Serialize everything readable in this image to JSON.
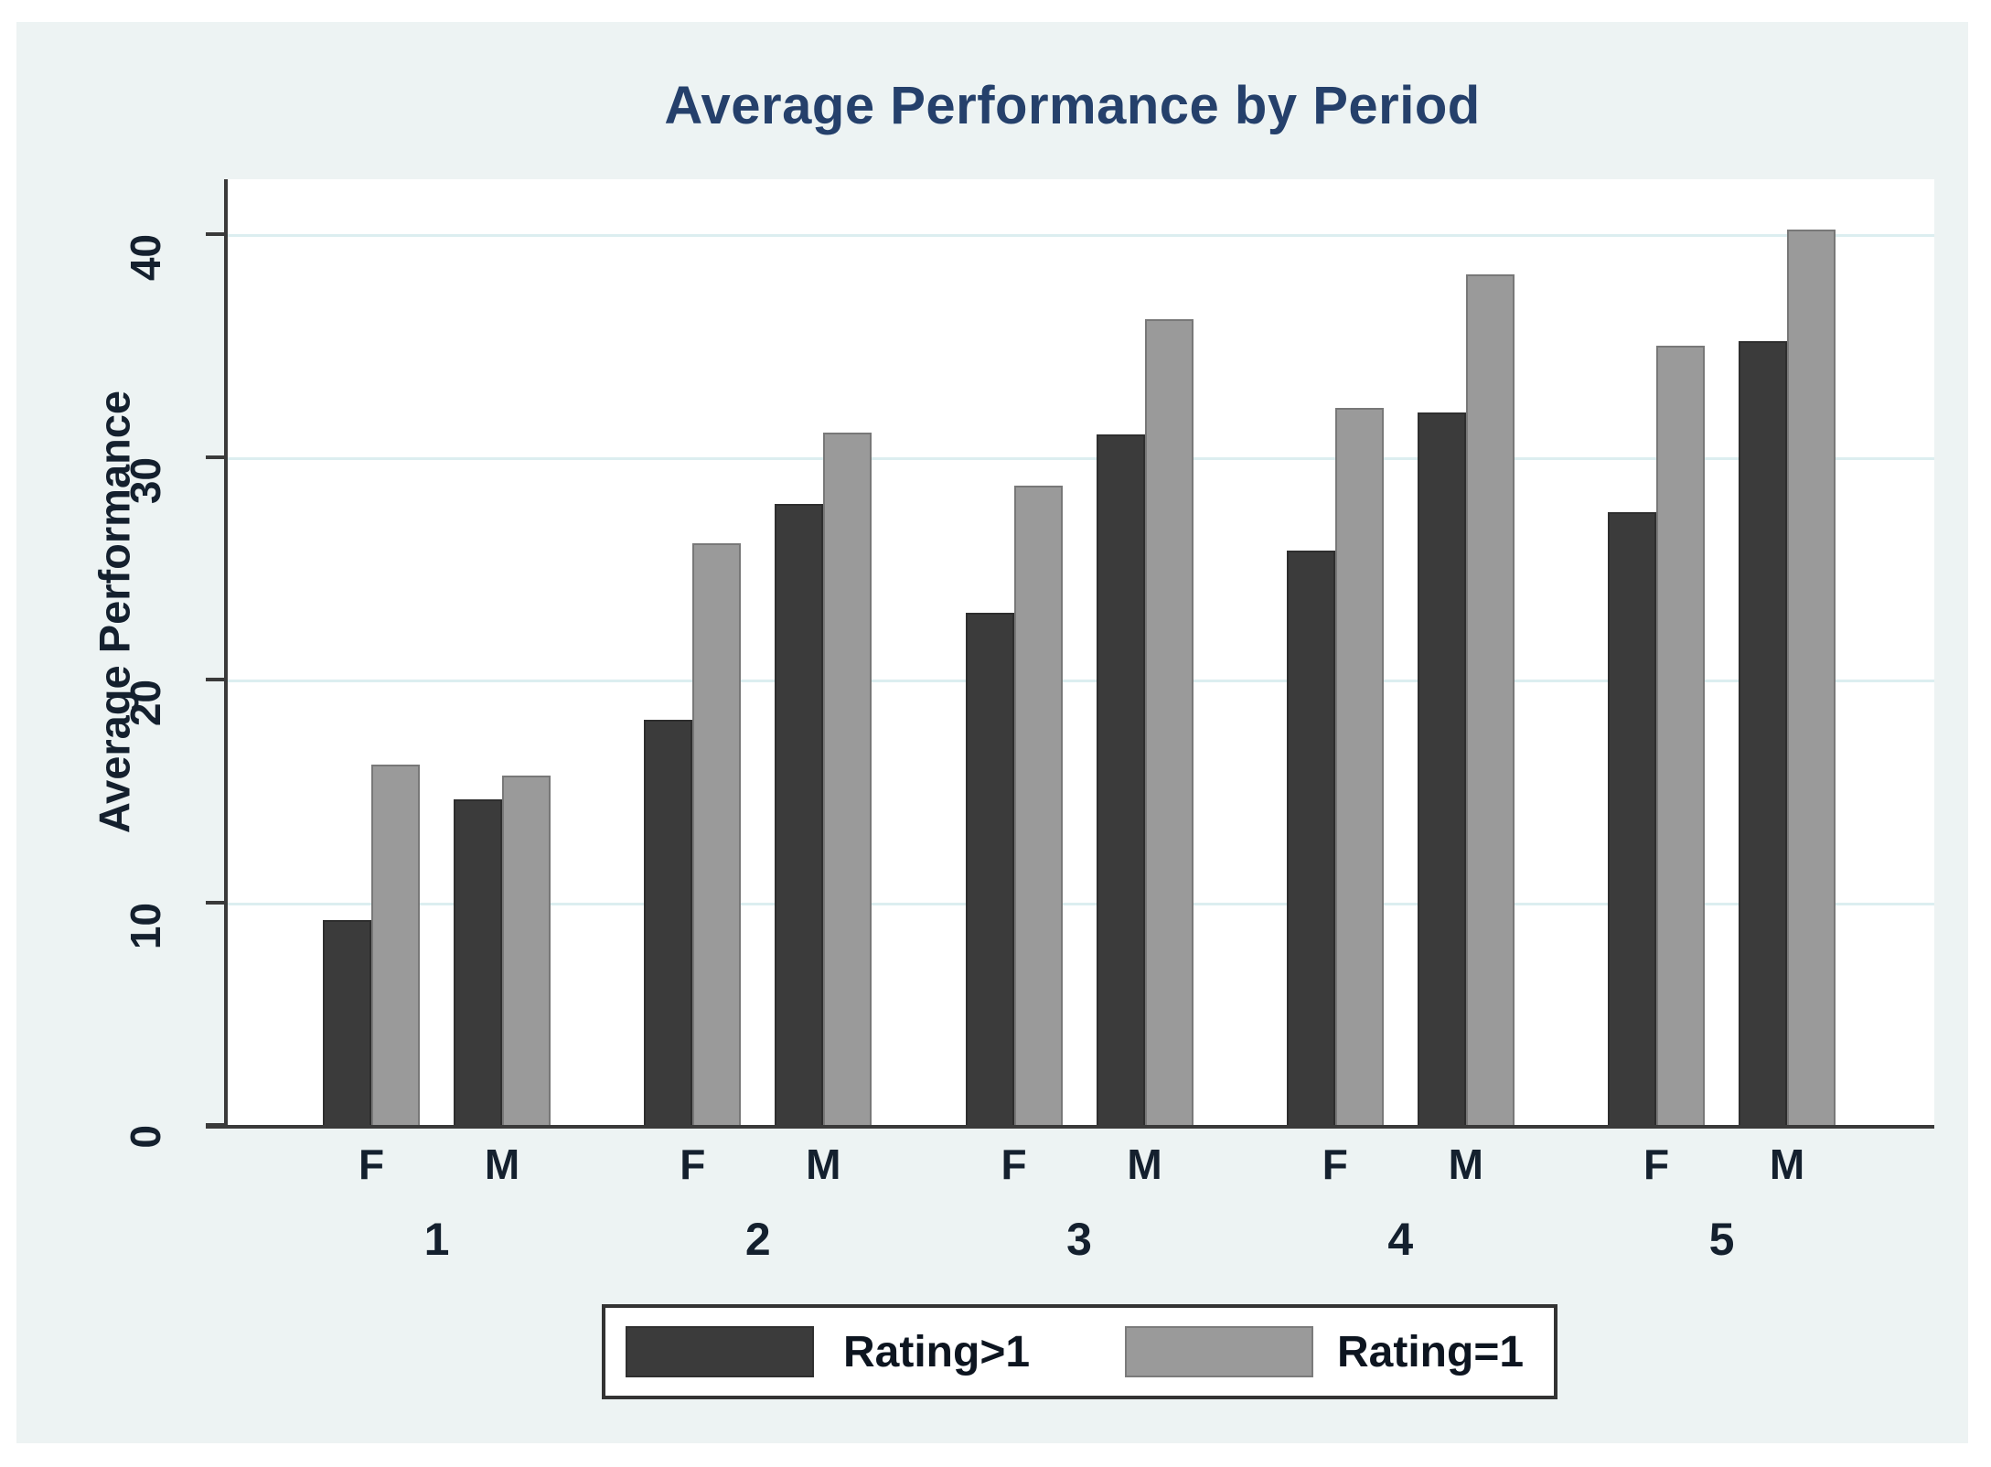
{
  "chart_data": {
    "type": "bar",
    "title": "Average Performance by Period",
    "xlabel": "",
    "ylabel": "Average Performance",
    "ylim": [
      0,
      42
    ],
    "yticks": [
      0,
      10,
      20,
      30,
      40
    ],
    "grid": true,
    "legend_position": "bottom",
    "groups": [
      "1",
      "2",
      "3",
      "4",
      "5"
    ],
    "subgroups": [
      "F",
      "M"
    ],
    "series": [
      {
        "name": "Rating>1",
        "color": "#3b3b3b",
        "values": {
          "F": [
            9.2,
            18.2,
            23.0,
            25.8,
            27.5
          ],
          "M": [
            14.6,
            27.9,
            31.0,
            32.0,
            35.2
          ]
        }
      },
      {
        "name": "Rating=1",
        "color": "#9a9a9a",
        "values": {
          "F": [
            16.2,
            26.1,
            28.7,
            32.2,
            35.0
          ],
          "M": [
            15.7,
            31.1,
            36.2,
            38.2,
            40.2
          ]
        }
      }
    ],
    "colors": {
      "panel_background": "#edf3f3",
      "plot_background": "#ffffff",
      "gridline": "#dceef0",
      "axis": "#3a3a3a",
      "title_text": "#25406b",
      "axis_text": "#14202e"
    }
  }
}
